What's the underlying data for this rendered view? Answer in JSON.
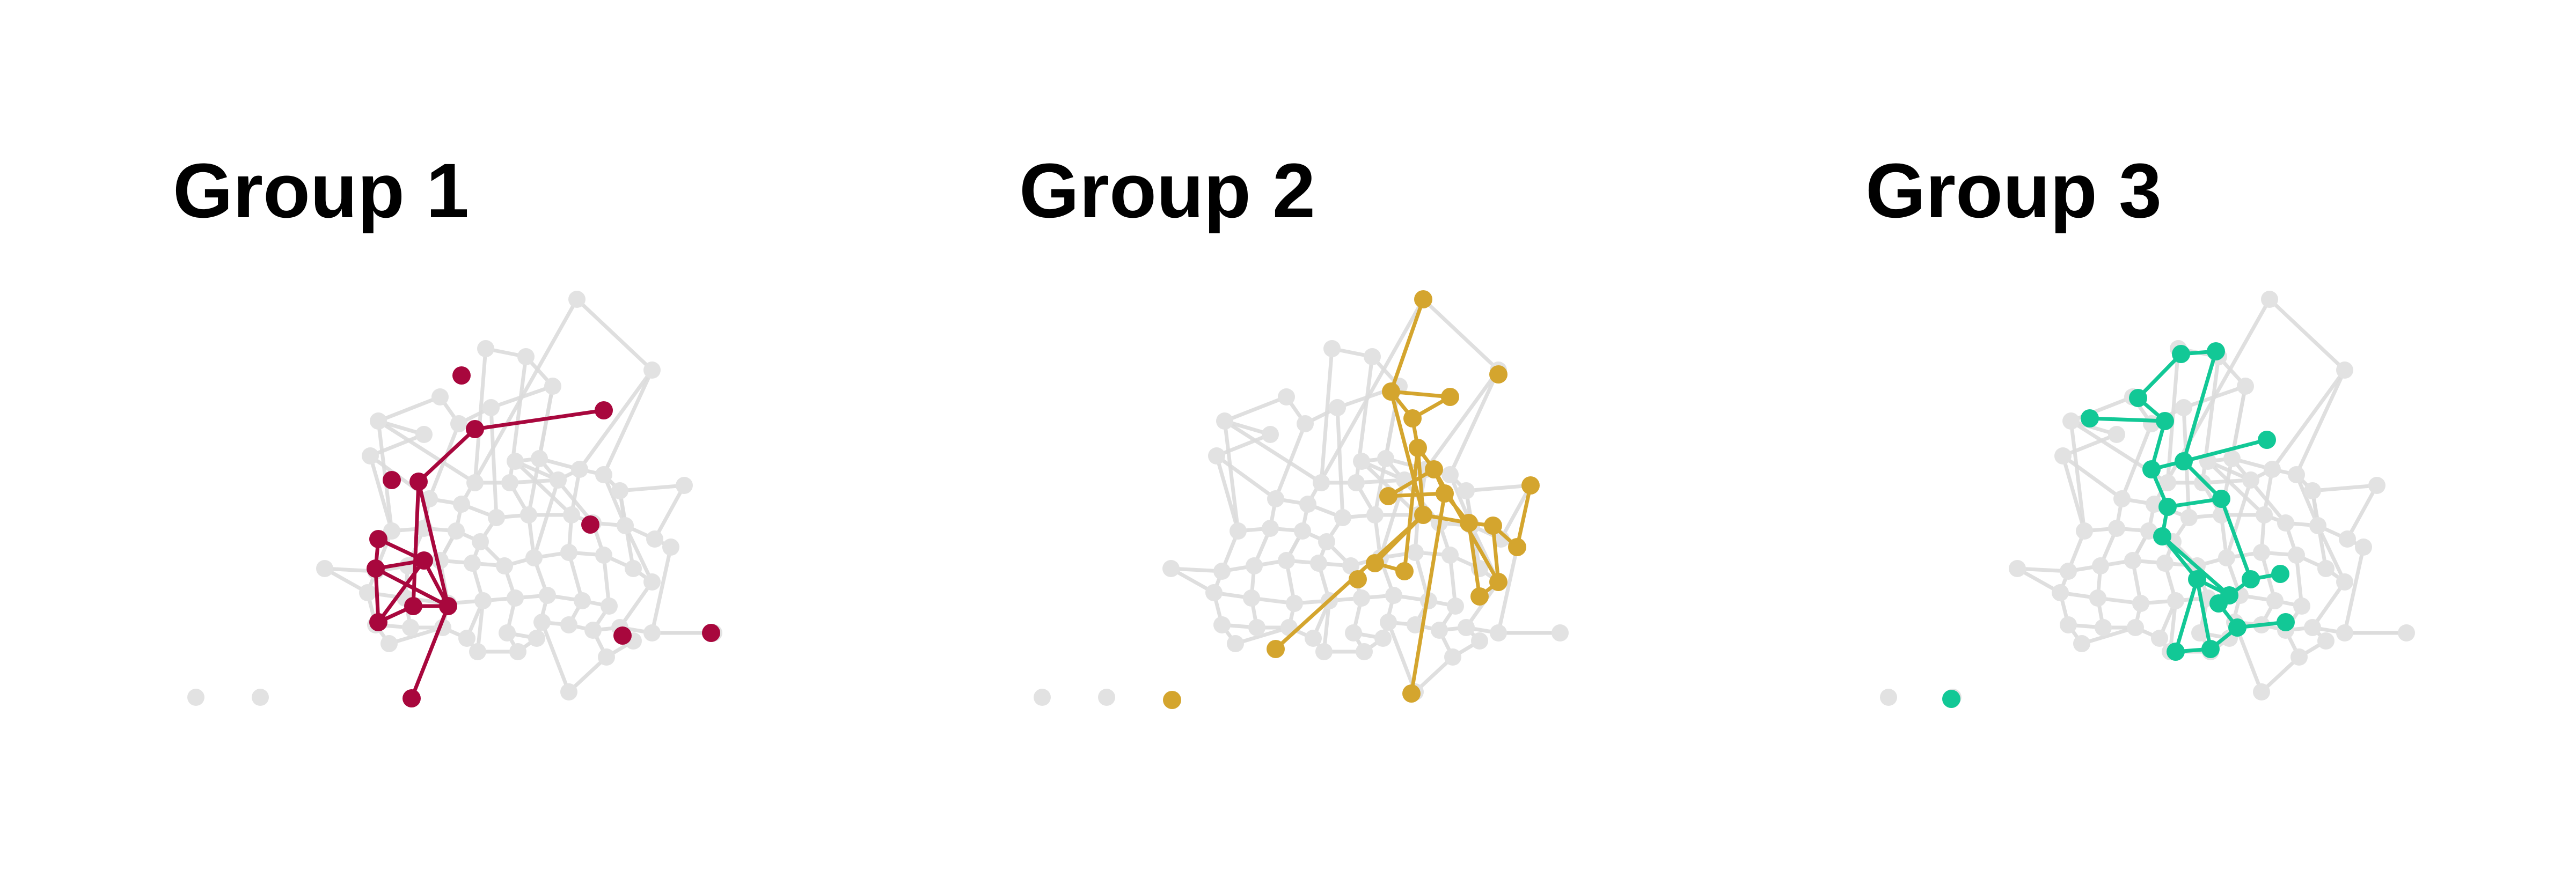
{
  "colors": {
    "background": "#ffffff",
    "base_node": "#e2e2e2",
    "base_edge": "#dcdcdc",
    "title": "#000000"
  },
  "panels": [
    {
      "title": "Group 1",
      "color": "#a8073d"
    },
    {
      "title": "Group 2",
      "color": "#d4a52e"
    },
    {
      "title": "Group 3",
      "color": "#12c896"
    }
  ]
}
